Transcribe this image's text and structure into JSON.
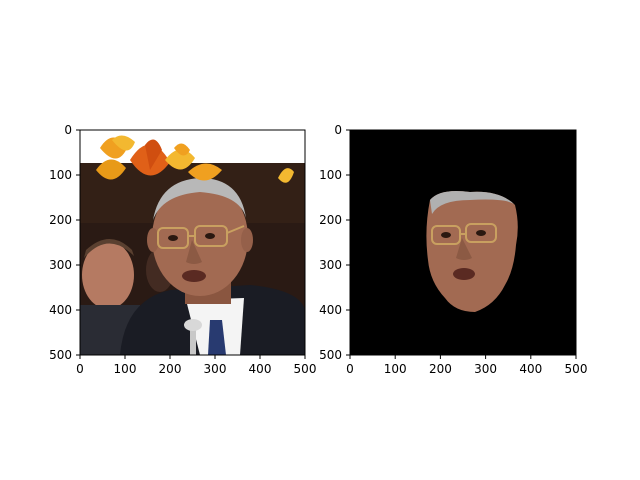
{
  "chart_data": [
    {
      "type": "image",
      "content": "photo-with-autumn-leaves",
      "xlim": [
        0,
        500
      ],
      "ylim": [
        500,
        0
      ],
      "xticks": [
        0,
        100,
        200,
        300,
        400,
        500
      ],
      "yticks": [
        0,
        100,
        200,
        300,
        400,
        500
      ],
      "xtick_labels": [
        "0",
        "100",
        "200",
        "300",
        "400",
        "500"
      ],
      "ytick_labels": [
        "0",
        "100",
        "200",
        "300",
        "400",
        "500"
      ]
    },
    {
      "type": "image",
      "content": "segmented-face-on-black",
      "xlim": [
        0,
        500
      ],
      "ylim": [
        500,
        0
      ],
      "xticks": [
        0,
        100,
        200,
        300,
        400,
        500
      ],
      "yticks": [
        0,
        100,
        200,
        300,
        400,
        500
      ],
      "xtick_labels": [
        "0",
        "100",
        "200",
        "300",
        "400",
        "500"
      ],
      "ytick_labels": [
        "0",
        "100",
        "200",
        "300",
        "400",
        "500"
      ]
    }
  ],
  "colors": {
    "background": "#000000",
    "leaf_orange": "#f0a020",
    "leaf_red": "#e06018",
    "skin": "#a26a52",
    "suit": "#1a1c24",
    "hair": "#b8b8b8"
  }
}
